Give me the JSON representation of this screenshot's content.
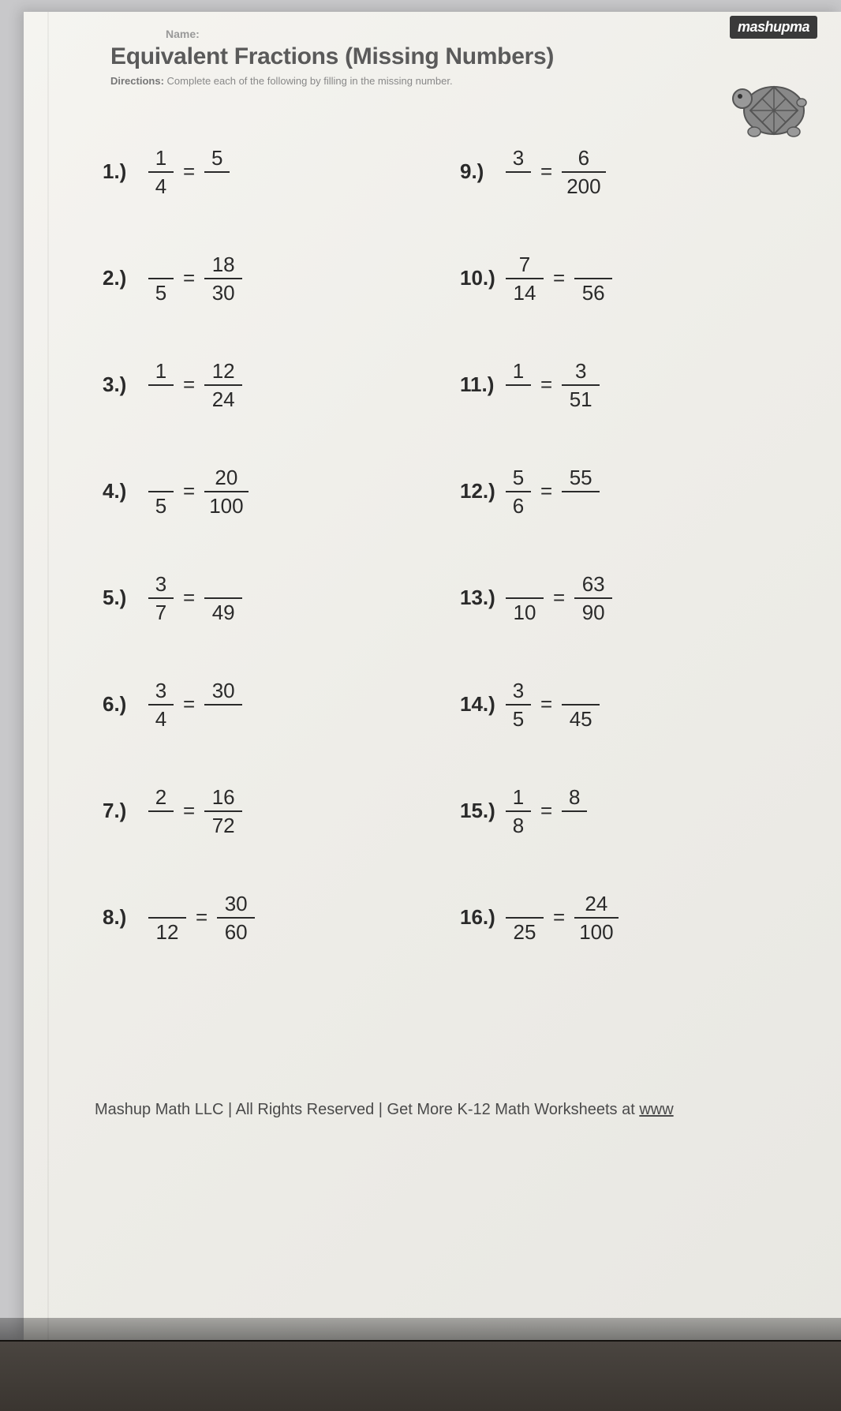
{
  "brand": "mashupma",
  "title": "Equivalent Fractions (Missing Numbers)",
  "directions_label": "Directions:",
  "directions_text": "Complete each of the following by filling in the missing number.",
  "name_label": "Name:",
  "problems_left": [
    {
      "n": "1.)",
      "a_num": "1",
      "a_den": "4",
      "b_num": "5",
      "b_den": ""
    },
    {
      "n": "2.)",
      "a_num": "",
      "a_den": "5",
      "b_num": "18",
      "b_den": "30"
    },
    {
      "n": "3.)",
      "a_num": "1",
      "a_den": "",
      "b_num": "12",
      "b_den": "24"
    },
    {
      "n": "4.)",
      "a_num": "",
      "a_den": "5",
      "b_num": "20",
      "b_den": "100"
    },
    {
      "n": "5.)",
      "a_num": "3",
      "a_den": "7",
      "b_num": "",
      "b_den": "49"
    },
    {
      "n": "6.)",
      "a_num": "3",
      "a_den": "4",
      "b_num": "30",
      "b_den": ""
    },
    {
      "n": "7.)",
      "a_num": "2",
      "a_den": "",
      "b_num": "16",
      "b_den": "72"
    },
    {
      "n": "8.)",
      "a_num": "",
      "a_den": "12",
      "b_num": "30",
      "b_den": "60"
    }
  ],
  "problems_right": [
    {
      "n": "9.)",
      "a_num": "3",
      "a_den": "",
      "b_num": "6",
      "b_den": "200"
    },
    {
      "n": "10.)",
      "a_num": "7",
      "a_den": "14",
      "b_num": "",
      "b_den": "56"
    },
    {
      "n": "11.)",
      "a_num": "1",
      "a_den": "",
      "b_num": "3",
      "b_den": "51"
    },
    {
      "n": "12.)",
      "a_num": "5",
      "a_den": "6",
      "b_num": "55",
      "b_den": ""
    },
    {
      "n": "13.)",
      "a_num": "",
      "a_den": "10",
      "b_num": "63",
      "b_den": "90"
    },
    {
      "n": "14.)",
      "a_num": "3",
      "a_den": "5",
      "b_num": "",
      "b_den": "45"
    },
    {
      "n": "15.)",
      "a_num": "1",
      "a_den": "8",
      "b_num": "8",
      "b_den": ""
    },
    {
      "n": "16.)",
      "a_num": "",
      "a_den": "25",
      "b_num": "24",
      "b_den": "100"
    }
  ],
  "footer_text": "Mashup Math LLC | All Rights Reserved | Get More K-12 Math Worksheets at ",
  "footer_link": "www"
}
